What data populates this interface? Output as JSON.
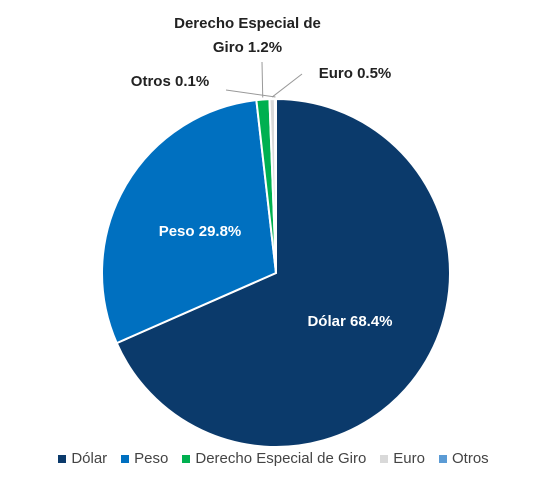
{
  "chart_data": {
    "type": "pie",
    "categories": [
      "Dólar",
      "Peso",
      "Derecho Especial de Giro",
      "Euro",
      "Otros"
    ],
    "values": [
      68.4,
      29.8,
      1.2,
      0.5,
      0.1
    ],
    "value_labels": [
      "68.4%",
      "29.8%",
      "1.2%",
      "0.5%",
      "0.1%"
    ],
    "colors": [
      "#0b3a6b",
      "#0070c0",
      "#00b050",
      "#d9d9d9",
      "#5b9bd5"
    ],
    "legend": "bottom"
  }
}
